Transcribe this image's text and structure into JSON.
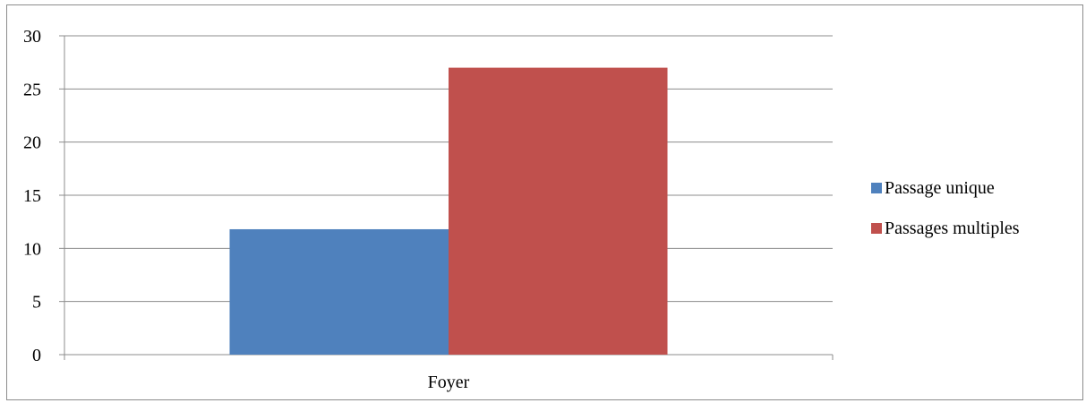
{
  "chart_data": {
    "type": "bar",
    "categories": [
      "Foyer"
    ],
    "series": [
      {
        "name": "Passage unique",
        "values": [
          11.8
        ],
        "color": "#4f81bd"
      },
      {
        "name": "Passages multiples",
        "values": [
          27
        ],
        "color": "#c0504d"
      }
    ],
    "title": "",
    "xlabel": "",
    "ylabel": "",
    "ylim": [
      0,
      30
    ],
    "yticks": [
      "0",
      "5",
      "10",
      "15",
      "20",
      "25",
      "30"
    ],
    "grid": true,
    "legend_position": "right",
    "gridline_color": "#8c8c8c",
    "axis_color": "#8c8c8c"
  }
}
